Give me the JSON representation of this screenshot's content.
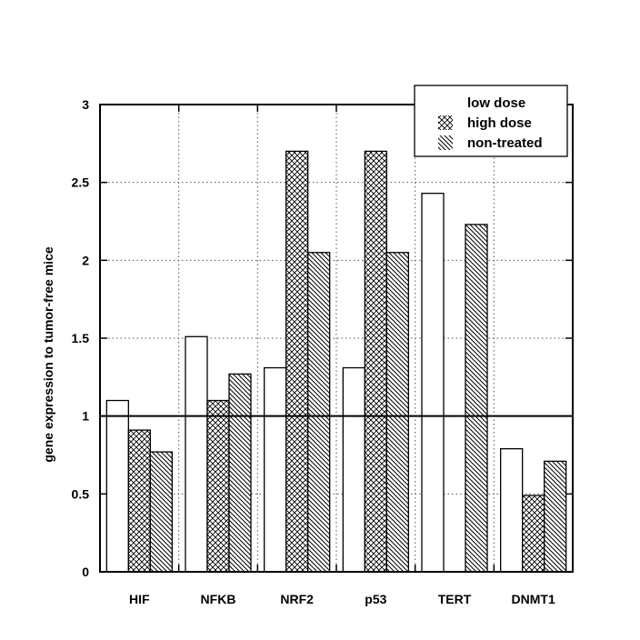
{
  "chart_data": {
    "type": "bar",
    "categories": [
      "HIF",
      "NFKB",
      "NRF2",
      "p53",
      "TERT",
      "DNMT1"
    ],
    "series": [
      {
        "name": "low dose",
        "pattern": "none",
        "values": [
          1.1,
          1.51,
          1.31,
          1.31,
          2.43,
          0.79
        ]
      },
      {
        "name": "high dose",
        "pattern": "crosshatch",
        "values": [
          0.91,
          1.1,
          2.7,
          2.7,
          null,
          0.49
        ]
      },
      {
        "name": "non-treated",
        "pattern": "diagonal",
        "values": [
          0.77,
          1.27,
          2.05,
          2.05,
          2.23,
          0.71
        ]
      }
    ],
    "title": "",
    "xlabel": "",
    "ylabel": "gene expression to tumor-free mice",
    "ylim": [
      0,
      3
    ],
    "yticks": [
      "0",
      "0.5",
      "1",
      "1.5",
      "2",
      "2.5",
      "3"
    ],
    "ytick_values": [
      0,
      0.5,
      1,
      1.5,
      2,
      2.5,
      3
    ],
    "reference_line": 1,
    "grid": true,
    "legend_position": "top-right",
    "colors": {
      "bar_stroke": "#000000",
      "bar_fill": "#ffffff",
      "hatch": "#000000"
    }
  }
}
